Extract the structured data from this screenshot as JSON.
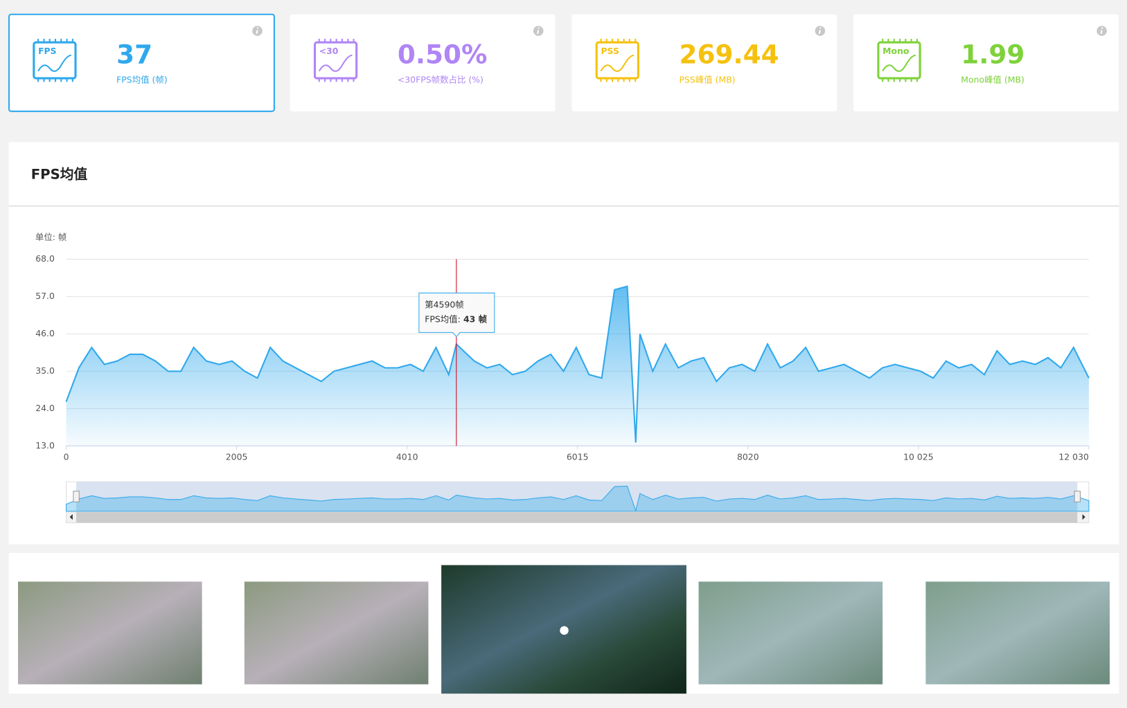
{
  "cards": [
    {
      "icon": "FPS",
      "value": "37",
      "label": "FPS均值 (帧)",
      "color": "#2fa8ec",
      "selected": true
    },
    {
      "icon": "<30",
      "value": "0.50%",
      "label": "<30FPS帧数占比 (%)",
      "color": "#b085f5",
      "selected": false
    },
    {
      "icon": "PSS",
      "value": "269.44",
      "label": "PSS峰值 (MB)",
      "color": "#f5c10e",
      "selected": false
    },
    {
      "icon": "Mono",
      "value": "1.99",
      "label": "Mono峰值 (MB)",
      "color": "#7ed23a",
      "selected": false
    }
  ],
  "chart_data": {
    "type": "area",
    "title": "FPS均值",
    "y_unit_label": "单位: 帧",
    "color": "#2fa8ec",
    "grid": true,
    "x": [
      0,
      150,
      300,
      450,
      600,
      750,
      900,
      1050,
      1200,
      1350,
      1500,
      1650,
      1800,
      1950,
      2100,
      2250,
      2400,
      2550,
      2700,
      2850,
      3000,
      3150,
      3300,
      3450,
      3600,
      3750,
      3900,
      4050,
      4200,
      4350,
      4500,
      4590,
      4800,
      4950,
      5100,
      5250,
      5400,
      5550,
      5700,
      5850,
      6000,
      6150,
      6300,
      6450,
      6600,
      6700,
      6750,
      6900,
      7050,
      7200,
      7350,
      7500,
      7650,
      7800,
      7950,
      8100,
      8250,
      8400,
      8550,
      8700,
      8850,
      9000,
      9150,
      9300,
      9450,
      9600,
      9750,
      9900,
      10050,
      10200,
      10350,
      10500,
      10650,
      10800,
      10950,
      11100,
      11250,
      11400,
      11550,
      11700,
      11850,
      12030
    ],
    "values": [
      26,
      36,
      42,
      37,
      38,
      40,
      40,
      38,
      35,
      35,
      42,
      38,
      37,
      38,
      35,
      33,
      42,
      38,
      36,
      34,
      32,
      35,
      36,
      37,
      38,
      36,
      36,
      37,
      35,
      42,
      34,
      43,
      38,
      36,
      37,
      34,
      35,
      38,
      40,
      35,
      42,
      34,
      33,
      59,
      60,
      14,
      46,
      35,
      43,
      36,
      38,
      39,
      32,
      36,
      37,
      35,
      43,
      36,
      38,
      42,
      35,
      36,
      37,
      35,
      33,
      36,
      37,
      36,
      35,
      33,
      38,
      36,
      37,
      34,
      41,
      37,
      38,
      37,
      39,
      36,
      42,
      33
    ],
    "xlim": [
      0,
      12030
    ],
    "ylim": [
      13,
      68
    ],
    "xticks": [
      0,
      2005,
      4010,
      6015,
      8020,
      {
        "value": 10025,
        "label": "10 025"
      },
      {
        "value": 12030,
        "label": "12 030"
      }
    ],
    "yticks": [
      {
        "value": 13,
        "label": "13.0"
      },
      {
        "value": 24,
        "label": "24.0"
      },
      {
        "value": 35,
        "label": "35.0"
      },
      {
        "value": 46,
        "label": "46.0"
      },
      {
        "value": 57,
        "label": "57.0"
      },
      {
        "value": 68,
        "label": "68.0"
      }
    ],
    "tooltip": {
      "x": 4590,
      "title": "第4590帧",
      "label": "FPS均值:",
      "value_label": "43 帧"
    }
  }
}
